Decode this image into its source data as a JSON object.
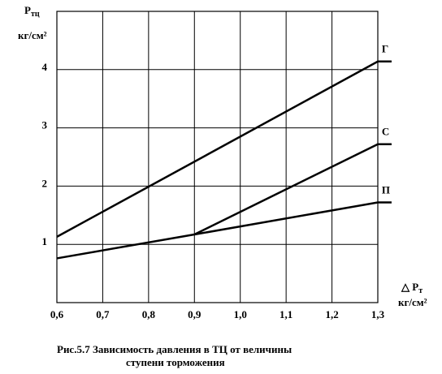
{
  "chart_data": {
    "type": "line",
    "y_label": "P",
    "y_label_sub": "тц",
    "y_unit": "кг/см²",
    "x_label": "△ P",
    "x_label_sub": "т",
    "x_unit": "кг/см²",
    "caption": [
      "Рис.5.7  Зависимость давления в ТЦ от величины",
      "ступени торможения"
    ],
    "xlim": [
      0.6,
      1.3
    ],
    "ylim": [
      0,
      5
    ],
    "xticks": [
      {
        "value": 0.6,
        "label": "0,6"
      },
      {
        "value": 0.7,
        "label": "0,7"
      },
      {
        "value": 0.8,
        "label": "0,8"
      },
      {
        "value": 0.9,
        "label": "0,9"
      },
      {
        "value": 1.0,
        "label": "1,0"
      },
      {
        "value": 1.1,
        "label": "1,1"
      },
      {
        "value": 1.2,
        "label": "1,2"
      },
      {
        "value": 1.3,
        "label": "1,3"
      }
    ],
    "yticks": [
      1,
      2,
      3,
      4
    ],
    "grid": true,
    "series": [
      {
        "name": "Г",
        "color": "#000000",
        "x": [
          0.6,
          1.3,
          1.33
        ],
        "values": [
          1.13,
          4.14,
          4.14
        ]
      },
      {
        "name": "С",
        "color": "#000000",
        "x": [
          0.9,
          1.3,
          1.33
        ],
        "values": [
          1.17,
          2.72,
          2.72
        ]
      },
      {
        "name": "П",
        "color": "#000000",
        "x": [
          0.6,
          0.9,
          1.3,
          1.33
        ],
        "values": [
          0.76,
          1.17,
          1.72,
          1.72
        ]
      }
    ]
  }
}
